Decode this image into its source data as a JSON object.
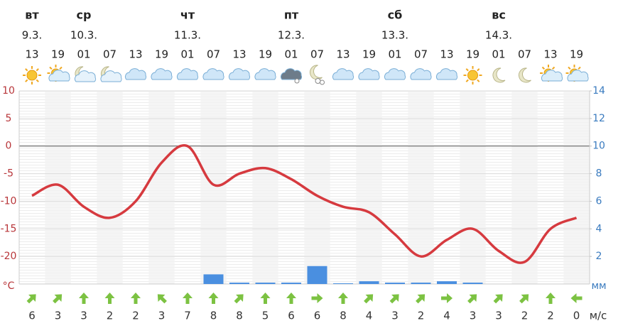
{
  "chart_data": {
    "type": "meteogram",
    "day_names": [
      "вт",
      null,
      "ср",
      null,
      null,
      null,
      "чт",
      null,
      null,
      null,
      "пт",
      null,
      null,
      null,
      "сб",
      null,
      null,
      null,
      "вс",
      null,
      null,
      null
    ],
    "dates": [
      "9.3.",
      null,
      "10.3.",
      null,
      null,
      null,
      "11.3.",
      null,
      null,
      null,
      "12.3.",
      null,
      null,
      null,
      "13.3.",
      null,
      null,
      null,
      "14.3.",
      null,
      null,
      null
    ],
    "categories": [
      "13",
      "19",
      "01",
      "07",
      "13",
      "19",
      "01",
      "07",
      "13",
      "19",
      "01",
      "07",
      "13",
      "19",
      "01",
      "07",
      "13",
      "19",
      "01",
      "07",
      "13",
      "19"
    ],
    "icons": [
      "sun",
      "sun-cloud",
      "moon-cloud",
      "moon-cloud",
      "cloud",
      "cloud",
      "cloud",
      "cloud",
      "cloud",
      "cloud",
      "dark-cloud",
      "snow-moon",
      "cloud",
      "cloud",
      "cloud",
      "cloud",
      "cloud",
      "sun",
      "moon",
      "moon",
      "sun-cloud",
      "sun-cloud"
    ],
    "series": [
      {
        "name": "temperature",
        "color": "#d63a3f",
        "values": [
          -9,
          -7,
          -11,
          -13,
          -10,
          -3,
          0,
          -7,
          -5,
          -4,
          -6,
          -9,
          -11,
          -12,
          -16,
          -20,
          -17,
          -15,
          -19,
          -21,
          -15,
          -13
        ]
      },
      {
        "name": "precipitation",
        "color": "#4a8fe0",
        "axis": "y2",
        "values": [
          0,
          0,
          0,
          0,
          0,
          0,
          0,
          0.7,
          0.1,
          0.1,
          0.1,
          1.3,
          0.05,
          0.2,
          0.1,
          0.1,
          0.2,
          0.1,
          0,
          0,
          0,
          0
        ]
      }
    ],
    "ylim": [
      -25,
      10
    ],
    "yticks": [
      -20,
      -15,
      -10,
      -5,
      0,
      5,
      10
    ],
    "y_unit": "°C",
    "y2lim": [
      0,
      14
    ],
    "y2ticks": [
      2,
      4,
      6,
      8,
      10,
      12,
      14
    ],
    "y2_unit": "мм",
    "wind_speed": [
      6,
      3,
      3,
      2,
      2,
      3,
      7,
      8,
      8,
      5,
      6,
      6,
      8,
      4,
      3,
      2,
      4,
      3,
      3,
      2,
      2,
      0
    ],
    "wind_direction": [
      45,
      45,
      0,
      0,
      0,
      -45,
      0,
      0,
      45,
      0,
      0,
      90,
      0,
      45,
      45,
      45,
      90,
      45,
      45,
      45,
      0,
      -90
    ],
    "wind_unit": "м/с",
    "wind_color": "#7cc242"
  }
}
